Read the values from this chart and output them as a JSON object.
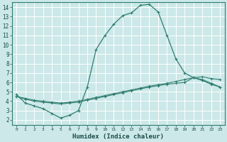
{
  "xlabel": "Humidex (Indice chaleur)",
  "bg_color": "#cce8e8",
  "grid_color": "#ffffff",
  "line_color": "#2e7d6e",
  "xlim": [
    -0.5,
    23.5
  ],
  "ylim": [
    1.5,
    14.5
  ],
  "xticks": [
    0,
    1,
    2,
    3,
    4,
    5,
    6,
    7,
    8,
    9,
    10,
    11,
    12,
    13,
    14,
    15,
    16,
    17,
    18,
    19,
    20,
    21,
    22,
    23
  ],
  "yticks": [
    2,
    3,
    4,
    5,
    6,
    7,
    8,
    9,
    10,
    11,
    12,
    13,
    14
  ],
  "line1_x": [
    0,
    1,
    2,
    3,
    4,
    5,
    6,
    7,
    8,
    9,
    10,
    11,
    12,
    13,
    14,
    15,
    16,
    17,
    18,
    19,
    20,
    21,
    22,
    23
  ],
  "line1_y": [
    4.7,
    3.8,
    3.5,
    3.2,
    2.7,
    2.2,
    2.5,
    3.0,
    5.5,
    9.5,
    11.0,
    12.2,
    13.1,
    13.4,
    14.2,
    14.3,
    13.5,
    11.0,
    8.5,
    7.0,
    6.5,
    6.2,
    5.8,
    5.5
  ],
  "line2_x": [
    0,
    1,
    2,
    3,
    4,
    5,
    6,
    7,
    8,
    9,
    10,
    11,
    12,
    13,
    14,
    15,
    16,
    17,
    18,
    19,
    20,
    21,
    22,
    23
  ],
  "line2_y": [
    4.5,
    4.2,
    4.0,
    3.9,
    3.8,
    3.7,
    3.8,
    3.9,
    4.1,
    4.3,
    4.5,
    4.7,
    4.9,
    5.1,
    5.3,
    5.5,
    5.65,
    5.8,
    5.9,
    6.0,
    6.5,
    6.3,
    5.9,
    5.5
  ],
  "line3_x": [
    0,
    1,
    2,
    3,
    4,
    5,
    6,
    7,
    8,
    9,
    10,
    11,
    12,
    13,
    14,
    15,
    16,
    17,
    18,
    19,
    20,
    21,
    22,
    23
  ],
  "line3_y": [
    4.5,
    4.3,
    4.1,
    4.0,
    3.9,
    3.8,
    3.9,
    4.0,
    4.2,
    4.4,
    4.6,
    4.8,
    5.0,
    5.2,
    5.4,
    5.6,
    5.75,
    5.9,
    6.1,
    6.3,
    6.5,
    6.6,
    6.4,
    6.3
  ]
}
